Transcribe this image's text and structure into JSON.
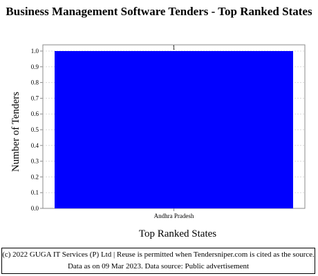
{
  "chart_data": {
    "type": "bar",
    "title": "Business Management Software Tenders - Top Ranked States",
    "xlabel": "Top Ranked States",
    "ylabel": "Number of Tenders",
    "categories": [
      "Andhra Pradesh"
    ],
    "values": [
      1
    ],
    "data_labels": [
      "1"
    ],
    "ylim": [
      0,
      1.0
    ],
    "yticks": [
      "0.0",
      "0.1",
      "0.2",
      "0.3",
      "0.4",
      "0.5",
      "0.6",
      "0.7",
      "0.8",
      "0.9",
      "1.0"
    ],
    "grid": true,
    "legend": "none",
    "bar_color": "#0000ff"
  },
  "footer": {
    "text": "(c) 2022 GUGA IT Services (P) Ltd | Reuse is permitted when Tendersniper.com is cited as the source. Data as on 09 Mar 2023. Data source: Public advertisement"
  }
}
